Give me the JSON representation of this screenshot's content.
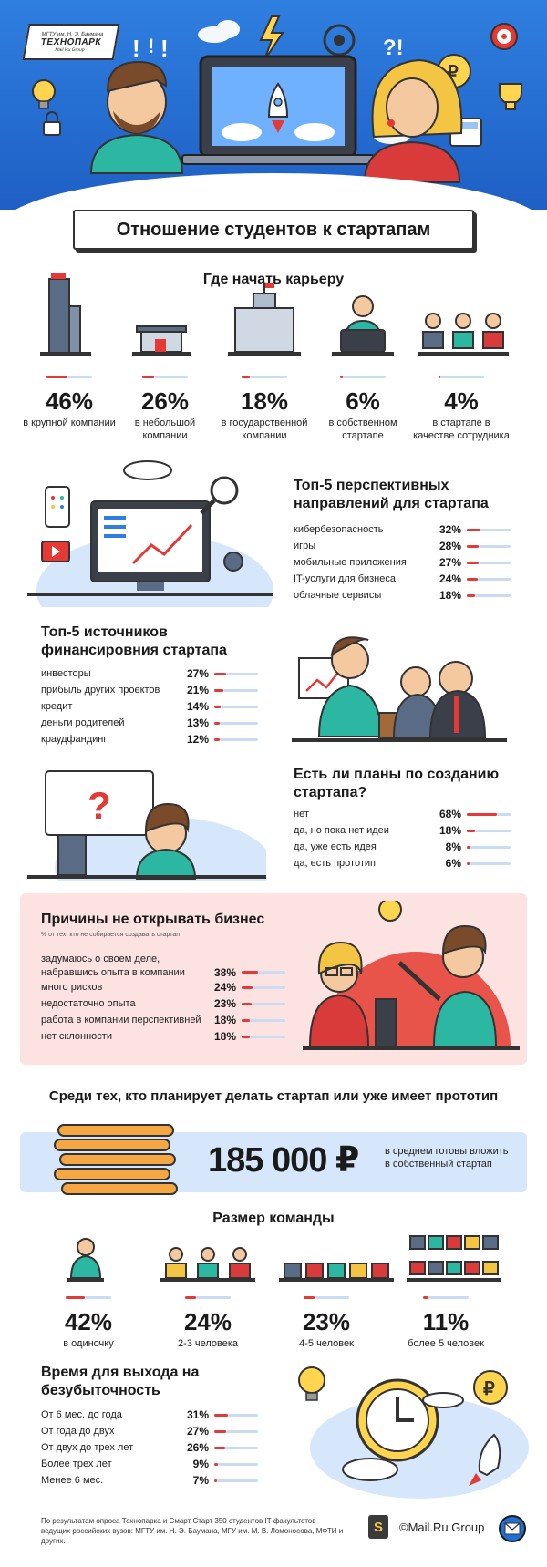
{
  "header": {
    "logo_top": "МГТУ им. Н. Э. Баумана",
    "logo_main": "ТЕХНОПАРК",
    "logo_sub": "Mail.Ru Group",
    "title": "Отношение студентов к стартапам",
    "colors": {
      "sky": "#2f7fe0",
      "accent": "#e53935",
      "track": "#c9dcf3"
    }
  },
  "career": {
    "heading": "Где начать карьеру",
    "items": [
      {
        "pct": "46%",
        "value": 46,
        "caption": "в крупной компании",
        "icon": "skyscraper-icon"
      },
      {
        "pct": "26%",
        "value": 26,
        "caption": "в небольшой компании",
        "icon": "small-office-icon"
      },
      {
        "pct": "18%",
        "value": 18,
        "caption": "в государственной компании",
        "icon": "government-building-icon"
      },
      {
        "pct": "6%",
        "value": 6,
        "caption": "в собственном стартапе",
        "icon": "founder-at-laptop-icon"
      },
      {
        "pct": "4%",
        "value": 4,
        "caption": "в стартапе в качестве сотрудника",
        "icon": "team-at-desks-icon"
      }
    ]
  },
  "directions": {
    "heading": "Топ-5 перспективных направлений для стартапа",
    "rows": [
      {
        "label": "кибербезопасность",
        "pct": "32%",
        "value": 32
      },
      {
        "label": "игры",
        "pct": "28%",
        "value": 28
      },
      {
        "label": "мобильные приложения",
        "pct": "27%",
        "value": 27
      },
      {
        "label": "IT-услуги для бизнеса",
        "pct": "24%",
        "value": 24
      },
      {
        "label": "облачные сервисы",
        "pct": "18%",
        "value": 18
      }
    ]
  },
  "funding": {
    "heading": "Топ-5 источников финансировния стартапа",
    "rows": [
      {
        "label": "инвесторы",
        "pct": "27%",
        "value": 27
      },
      {
        "label": "прибыль других проектов",
        "pct": "21%",
        "value": 21
      },
      {
        "label": "кредит",
        "pct": "14%",
        "value": 14
      },
      {
        "label": "деньги родителей",
        "pct": "13%",
        "value": 13
      },
      {
        "label": "краудфандинг",
        "pct": "12%",
        "value": 12
      }
    ]
  },
  "plans": {
    "heading": "Есть ли планы по созданию стартапа?",
    "rows": [
      {
        "label": "нет",
        "pct": "68%",
        "value": 68
      },
      {
        "label": "да, но пока нет идеи",
        "pct": "18%",
        "value": 18
      },
      {
        "label": "да, уже есть идея",
        "pct": "8%",
        "value": 8
      },
      {
        "label": "да, есть прототип",
        "pct": "6%",
        "value": 6
      }
    ]
  },
  "reasons": {
    "heading": "Причины не открывать бизнес",
    "note": "% от тех, кто не собирается создавать стартап",
    "rows": [
      {
        "label": "задумаюсь о своем деле, набравшись опыта в компании",
        "pct": "38%",
        "value": 38
      },
      {
        "label": "много рисков",
        "pct": "24%",
        "value": 24
      },
      {
        "label": "недостаточно опыта",
        "pct": "23%",
        "value": 23
      },
      {
        "label": "работа в компании перспективней",
        "pct": "18%",
        "value": 18
      },
      {
        "label": "нет склонности",
        "pct": "18%",
        "value": 18
      }
    ]
  },
  "investment": {
    "heading": "Среди тех, кто планирует делать стартап или уже имеет прототип",
    "amount": "185 000 ₽",
    "caption": "в среднем готовы вложить в собственный стартап"
  },
  "team": {
    "heading": "Размер команды",
    "items": [
      {
        "pct": "42%",
        "value": 42,
        "caption": "в одиночку"
      },
      {
        "pct": "24%",
        "value": 24,
        "caption": "2-3 человека"
      },
      {
        "pct": "23%",
        "value": 23,
        "caption": "4-5 человек"
      },
      {
        "pct": "11%",
        "value": 11,
        "caption": "более 5 человек"
      }
    ]
  },
  "breakeven": {
    "heading": "Время для выхода на безубыточность",
    "rows": [
      {
        "label": "От 6 мес. до года",
        "pct": "31%",
        "value": 31
      },
      {
        "label": "От года до двух",
        "pct": "27%",
        "value": 27
      },
      {
        "label": "От двух до трех лет",
        "pct": "26%",
        "value": 26
      },
      {
        "label": "Более трех лет",
        "pct": "9%",
        "value": 9
      },
      {
        "label": "Менее 6 мес.",
        "pct": "7%",
        "value": 7
      }
    ]
  },
  "footer": {
    "note_line1": "По результатам опроса Технопарка и Смарт Старт 350 студентов IT-факультетов",
    "note_line2": "ведущих российских вузов: МГТУ им. Н. Э. Баумана, МГУ им. М. В. Ломоносова, МФТИ и других.",
    "badge": "S",
    "brand": "©Mail.Ru Group"
  }
}
